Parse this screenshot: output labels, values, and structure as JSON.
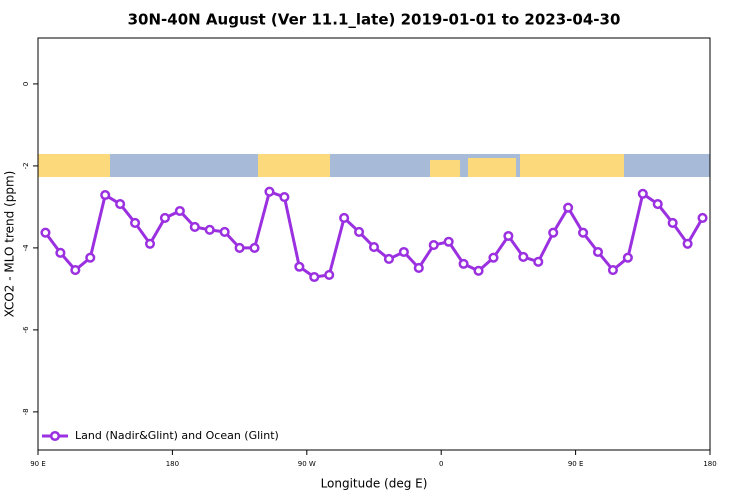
{
  "chart_data": {
    "type": "line",
    "title": "30N-40N August (Ver 11.1_late)   2019-01-01 to 2023-04-30",
    "x_label": "Longitude (deg E)",
    "y_label": "XCO2 - MLO trend (ppm)",
    "x": [
      95,
      105,
      115,
      125,
      135,
      145,
      155,
      165,
      175,
      185,
      195,
      205,
      215,
      225,
      235,
      245,
      255,
      265,
      275,
      285,
      295,
      305,
      315,
      325,
      335,
      345,
      355,
      365,
      375,
      385,
      395,
      405,
      415,
      425,
      435,
      445,
      455,
      465,
      475,
      485,
      495,
      505,
      515,
      525,
      535
    ],
    "series": [
      {
        "name": "Land (Nadir&Glint) and Ocean (Glint)",
        "color": "#9b30e0",
        "values": [
          -3.63,
          -4.12,
          -4.54,
          -4.24,
          -2.71,
          -2.93,
          -3.39,
          -3.9,
          -3.27,
          -3.1,
          -3.49,
          -3.56,
          -3.61,
          -4.0,
          -4.0,
          -2.63,
          -2.76,
          -4.46,
          -4.71,
          -4.66,
          -3.27,
          -3.61,
          -3.98,
          -4.27,
          -4.1,
          -4.49,
          -3.93,
          -3.85,
          -4.39,
          -4.56,
          -4.24,
          -3.71,
          -4.22,
          -4.34,
          -3.63,
          -3.02,
          -3.63,
          -4.1,
          -4.54,
          -4.24,
          -2.68,
          -2.93,
          -3.39,
          -3.9,
          -3.27
        ]
      }
    ],
    "xlim": [
      90,
      540
    ],
    "xticks": [
      {
        "value": 90,
        "label": "90 E"
      },
      180,
      {
        "value": 270,
        "label": "90 W"
      },
      {
        "value": 360,
        "label": "0"
      },
      {
        "value": 450,
        "label": "90 E"
      },
      {
        "value": 540,
        "label": "180"
      }
    ],
    "ylim": [
      -8.93,
      1.12
    ],
    "yticks": [
      0,
      -2,
      -4,
      -6,
      -8
    ],
    "legend": "bottom-left"
  }
}
